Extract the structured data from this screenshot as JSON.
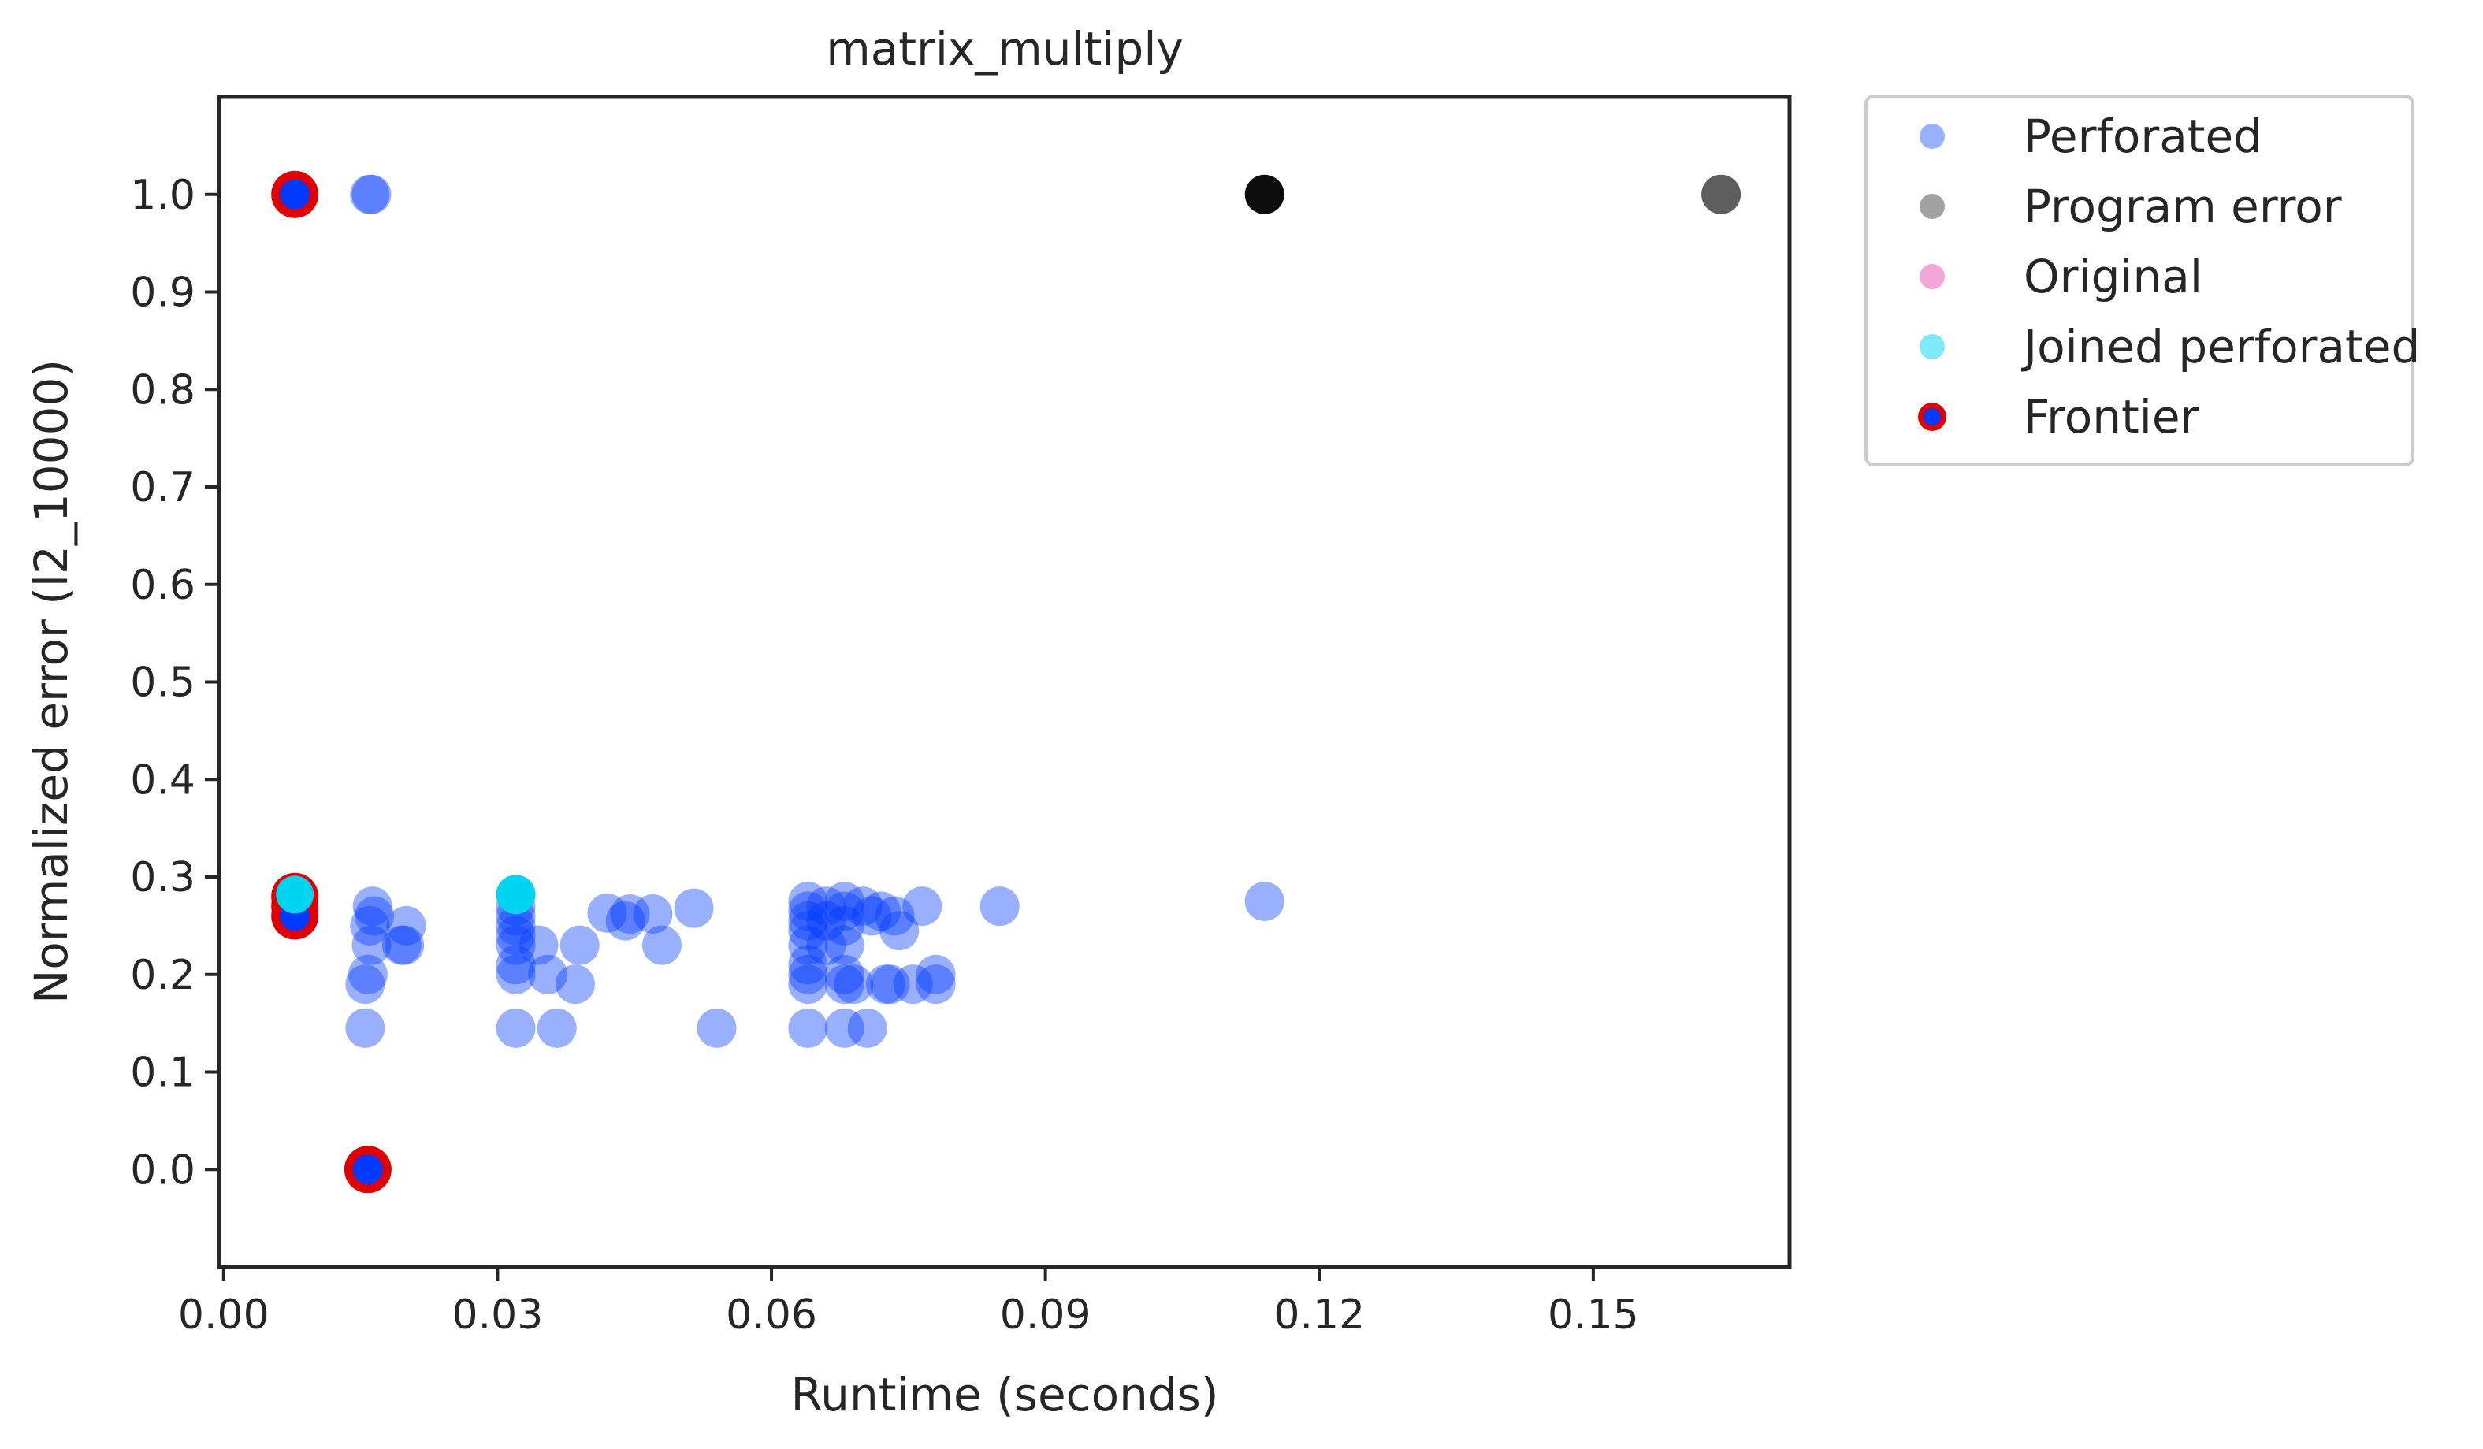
{
  "chart_data": {
    "type": "scatter",
    "title": "matrix_multiply",
    "xlabel": "Runtime (seconds)",
    "ylabel": "Normalized error (l2_10000)",
    "xlim": [
      -0.0005,
      0.1715
    ],
    "ylim": [
      -0.1,
      1.1
    ],
    "xticks": [
      0.0,
      0.03,
      0.06,
      0.09,
      0.12,
      0.15
    ],
    "xtick_labels": [
      "0.00",
      "0.03",
      "0.06",
      "0.09",
      "0.12",
      "0.15"
    ],
    "yticks": [
      0.0,
      0.1,
      0.2,
      0.3,
      0.4,
      0.5,
      0.6,
      0.7,
      0.8,
      0.9,
      1.0
    ],
    "ytick_labels": [
      "0.0",
      "0.1",
      "0.2",
      "0.3",
      "0.4",
      "0.5",
      "0.6",
      "0.7",
      "0.8",
      "0.9",
      "1.0"
    ],
    "legend_position": "outside-right-top",
    "colors": {
      "perforated": "#0039ff",
      "program_error": "#555555",
      "original": "#f4a6d8",
      "joined": "#00d4f0",
      "frontier": "#e00000"
    },
    "series": [
      {
        "name": "Perforated",
        "key": "perforated",
        "points": [
          [
            0.0155,
            0.145
          ],
          [
            0.0155,
            0.19
          ],
          [
            0.0158,
            0.2
          ],
          [
            0.0162,
            0.23
          ],
          [
            0.016,
            0.25
          ],
          [
            0.0165,
            0.26
          ],
          [
            0.0163,
            0.27
          ],
          [
            0.016,
            1.0
          ],
          [
            0.0162,
            1.0
          ],
          [
            0.0195,
            0.23
          ],
          [
            0.02,
            0.25
          ],
          [
            0.0198,
            0.23
          ],
          [
            0.032,
            0.145
          ],
          [
            0.032,
            0.2
          ],
          [
            0.032,
            0.21
          ],
          [
            0.032,
            0.23
          ],
          [
            0.032,
            0.24
          ],
          [
            0.032,
            0.25
          ],
          [
            0.032,
            0.26
          ],
          [
            0.032,
            0.27
          ],
          [
            0.0345,
            0.23
          ],
          [
            0.0355,
            0.2
          ],
          [
            0.0365,
            0.145
          ],
          [
            0.0385,
            0.19
          ],
          [
            0.039,
            0.23
          ],
          [
            0.042,
            0.263
          ],
          [
            0.044,
            0.255
          ],
          [
            0.0445,
            0.262
          ],
          [
            0.047,
            0.262
          ],
          [
            0.048,
            0.23
          ],
          [
            0.0515,
            0.268
          ],
          [
            0.054,
            0.145
          ],
          [
            0.064,
            0.145
          ],
          [
            0.064,
            0.19
          ],
          [
            0.064,
            0.2
          ],
          [
            0.064,
            0.21
          ],
          [
            0.064,
            0.23
          ],
          [
            0.064,
            0.245
          ],
          [
            0.064,
            0.255
          ],
          [
            0.064,
            0.265
          ],
          [
            0.064,
            0.275
          ],
          [
            0.066,
            0.23
          ],
          [
            0.066,
            0.255
          ],
          [
            0.066,
            0.27
          ],
          [
            0.068,
            0.145
          ],
          [
            0.068,
            0.19
          ],
          [
            0.068,
            0.2
          ],
          [
            0.068,
            0.23
          ],
          [
            0.068,
            0.25
          ],
          [
            0.068,
            0.265
          ],
          [
            0.068,
            0.275
          ],
          [
            0.069,
            0.19
          ],
          [
            0.07,
            0.27
          ],
          [
            0.0705,
            0.145
          ],
          [
            0.071,
            0.26
          ],
          [
            0.072,
            0.265
          ],
          [
            0.0725,
            0.19
          ],
          [
            0.073,
            0.19
          ],
          [
            0.0735,
            0.26
          ],
          [
            0.074,
            0.245
          ],
          [
            0.0755,
            0.19
          ],
          [
            0.0765,
            0.27
          ],
          [
            0.078,
            0.19
          ],
          [
            0.078,
            0.2
          ],
          [
            0.085,
            0.27
          ],
          [
            0.114,
            0.275
          ]
        ]
      },
      {
        "name": "Program error",
        "key": "program_error",
        "points": [
          [
            0.114,
            1.0
          ],
          [
            0.164,
            1.0
          ]
        ]
      },
      {
        "name": "Original",
        "key": "original",
        "points": []
      },
      {
        "name": "Joined perforated",
        "key": "joined",
        "points": [
          [
            0.0078,
            0.282
          ],
          [
            0.032,
            0.282
          ]
        ]
      },
      {
        "name": "Frontier",
        "key": "frontier",
        "points": [
          [
            0.0078,
            1.0
          ],
          [
            0.0078,
            0.28
          ],
          [
            0.0078,
            0.27
          ],
          [
            0.0078,
            0.26
          ],
          [
            0.0158,
            0.0
          ]
        ]
      }
    ]
  }
}
